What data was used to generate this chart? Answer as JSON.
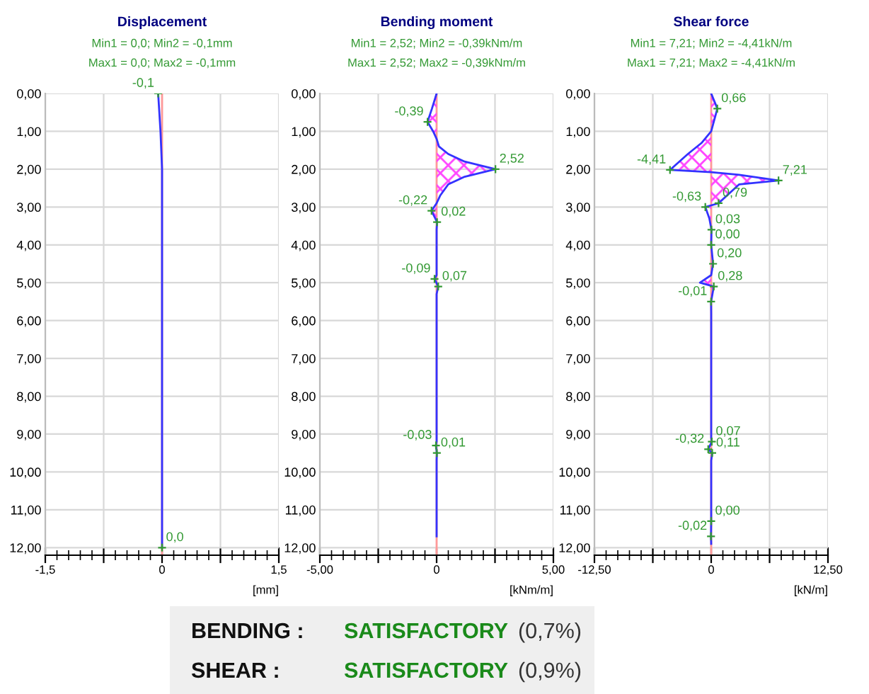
{
  "chart_data": [
    {
      "type": "line",
      "title": "Displacement",
      "subtitle": "Min1 = 0,0; Min2 = -0,1mm\nMax1 = 0,0; Max2 = -0,1mm",
      "xlabel": "[mm]",
      "series": [
        {
          "color": "#3333ff",
          "x": [
            -0.05,
            -0.02,
            0,
            0
          ],
          "values": [
            0,
            1,
            2,
            12
          ]
        }
      ],
      "xlim": [
        -1.5,
        1.5
      ],
      "xticks": [
        {
          "value": -1.5,
          "label": "-1,5"
        },
        {
          "value": -0.75,
          "label": null
        },
        0,
        {
          "value": 0.75,
          "label": null
        },
        {
          "value": 1.5,
          "label": "1,5"
        }
      ],
      "ylim": [
        12.2,
        0
      ],
      "yticks": [
        {
          "value": 0,
          "label": "0,00"
        },
        {
          "value": 1,
          "label": "1,00"
        },
        {
          "value": 2,
          "label": "2,00"
        },
        {
          "value": 3,
          "label": "3,00"
        },
        {
          "value": 4,
          "label": "4,00"
        },
        {
          "value": 5,
          "label": "5,00"
        },
        {
          "value": 6,
          "label": "6,00"
        },
        {
          "value": 7,
          "label": "7,00"
        },
        {
          "value": 8,
          "label": "8,00"
        },
        {
          "value": 9,
          "label": "9,00"
        },
        {
          "value": 10,
          "label": "10,00"
        },
        {
          "value": 11,
          "label": "11,00"
        },
        {
          "value": 12,
          "label": "12,00"
        }
      ],
      "grid": true,
      "ref_lines": [
        {
          "axis": "x",
          "value": 0,
          "color": "#ff9999"
        }
      ],
      "annotations": [
        {
          "text": "-0,1",
          "x": -0.05,
          "y": 0
        },
        {
          "text": "0,0",
          "x": 0,
          "y": 12
        }
      ]
    },
    {
      "type": "area",
      "title": "Bending moment",
      "subtitle": "Min1 = 2,52; Min2 = -0,39kNm/m\nMax1 = 2,52; Max2 = -0,39kNm/m",
      "xlabel": "[kNm/m]",
      "series": [
        {
          "color": "#3333ff",
          "x": [
            0,
            -0.2,
            -0.39,
            -0.15,
            0,
            0.1,
            0.5,
            1.2,
            2.52,
            1.2,
            0.5,
            0.15,
            0,
            -0.22,
            0.02,
            0,
            0,
            -0.09,
            0.07,
            0,
            0,
            -0.03,
            0.01,
            0,
            0
          ],
          "values": [
            0,
            0.4,
            0.75,
            1.0,
            1.2,
            1.4,
            1.6,
            1.8,
            2.0,
            2.2,
            2.4,
            2.7,
            2.9,
            3.1,
            3.4,
            3.6,
            4.8,
            4.9,
            5.1,
            5.3,
            9.2,
            9.3,
            9.5,
            9.7,
            11.7
          ]
        }
      ],
      "xlim": [
        -5,
        5
      ],
      "xticks": [
        {
          "value": -5,
          "label": "-5,00"
        },
        {
          "value": -2.5,
          "label": null
        },
        0,
        {
          "value": 2.5,
          "label": null
        },
        {
          "value": 5,
          "label": "5,00"
        }
      ],
      "ylim": [
        12.2,
        0
      ],
      "yticks": [
        {
          "value": 0,
          "label": "0,00"
        },
        {
          "value": 1,
          "label": "1,00"
        },
        {
          "value": 2,
          "label": "2,00"
        },
        {
          "value": 3,
          "label": "3,00"
        },
        {
          "value": 4,
          "label": "4,00"
        },
        {
          "value": 5,
          "label": "5,00"
        },
        {
          "value": 6,
          "label": "6,00"
        },
        {
          "value": 7,
          "label": "7,00"
        },
        {
          "value": 8,
          "label": "8,00"
        },
        {
          "value": 9,
          "label": "9,00"
        },
        {
          "value": 10,
          "label": "10,00"
        },
        {
          "value": 11,
          "label": "11,00"
        },
        {
          "value": 12,
          "label": "12,00"
        }
      ],
      "grid": true,
      "ref_lines": [
        {
          "axis": "x",
          "value": 0,
          "color": "#ff9999"
        }
      ],
      "annotations": [
        {
          "text": "-0,39",
          "x": -0.39,
          "y": 0.75
        },
        {
          "text": "2,52",
          "x": 2.52,
          "y": 2.0
        },
        {
          "text": "-0,22",
          "x": -0.22,
          "y": 3.1
        },
        {
          "text": "0,02",
          "x": 0.02,
          "y": 3.4
        },
        {
          "text": "-0,09",
          "x": -0.09,
          "y": 4.9
        },
        {
          "text": "0,07",
          "x": 0.07,
          "y": 5.1
        },
        {
          "text": "-0,03",
          "x": -0.03,
          "y": 9.3
        },
        {
          "text": "0,01",
          "x": 0.01,
          "y": 9.5
        }
      ]
    },
    {
      "type": "area",
      "title": "Shear force",
      "subtitle": "Min1 = 7,21; Min2 = -4,41kN/m\nMax1 = 7,21; Max2 = -4,41kN/m",
      "xlabel": "[kN/m]",
      "series": [
        {
          "color": "#3333ff",
          "x": [
            0,
            0.66,
            0,
            -1.0,
            -2.5,
            -4.41,
            0,
            3.0,
            7.21,
            3.0,
            0.79,
            -0.63,
            -0.2,
            0.03,
            0,
            0.2,
            0,
            -1.2,
            0.28,
            -0.01,
            0,
            0,
            0.07,
            -0.32,
            0.11,
            0,
            0,
            -0.02,
            0
          ],
          "values": [
            0,
            0.4,
            1.0,
            1.3,
            1.6,
            2.02,
            2.08,
            2.15,
            2.3,
            2.4,
            2.9,
            3.0,
            3.3,
            3.6,
            4.0,
            4.5,
            4.8,
            5.0,
            5.1,
            5.5,
            5.8,
            9.1,
            9.2,
            9.4,
            9.5,
            9.7,
            11.3,
            11.7,
            11.9
          ]
        }
      ],
      "xlim": [
        -12.5,
        12.5
      ],
      "xticks": [
        {
          "value": -12.5,
          "label": "-12,50"
        },
        {
          "value": -6.25,
          "label": null
        },
        0,
        {
          "value": 6.25,
          "label": null
        },
        {
          "value": 12.5,
          "label": "12,50"
        }
      ],
      "ylim": [
        12.2,
        0
      ],
      "yticks": [
        {
          "value": 0,
          "label": "0,00"
        },
        {
          "value": 1,
          "label": "1,00"
        },
        {
          "value": 2,
          "label": "2,00"
        },
        {
          "value": 3,
          "label": "3,00"
        },
        {
          "value": 4,
          "label": "4,00"
        },
        {
          "value": 5,
          "label": "5,00"
        },
        {
          "value": 6,
          "label": "6,00"
        },
        {
          "value": 7,
          "label": "7,00"
        },
        {
          "value": 8,
          "label": "8,00"
        },
        {
          "value": 9,
          "label": "9,00"
        },
        {
          "value": 10,
          "label": "10,00"
        },
        {
          "value": 11,
          "label": "11,00"
        },
        {
          "value": 12,
          "label": "12,00"
        }
      ],
      "grid": true,
      "ref_lines": [
        {
          "axis": "x",
          "value": 0,
          "color": "#ff9999"
        }
      ],
      "annotations": [
        {
          "text": "0,66",
          "x": 0.66,
          "y": 0.4
        },
        {
          "text": "-4,41",
          "x": -4.41,
          "y": 2.02
        },
        {
          "text": "7,21",
          "x": 7.21,
          "y": 2.3
        },
        {
          "text": "0,79",
          "x": 0.79,
          "y": 2.9
        },
        {
          "text": "-0,63",
          "x": -0.63,
          "y": 3.0
        },
        {
          "text": "0,03",
          "x": 0.03,
          "y": 3.6
        },
        {
          "text": "0,00",
          "x": 0,
          "y": 4.0
        },
        {
          "text": "0,20",
          "x": 0.2,
          "y": 4.5
        },
        {
          "text": "0,28",
          "x": 0.28,
          "y": 5.1
        },
        {
          "text": "-0,01",
          "x": -0.01,
          "y": 5.5
        },
        {
          "text": "0,07",
          "x": 0.07,
          "y": 9.2
        },
        {
          "text": "-0,32",
          "x": -0.32,
          "y": 9.4
        },
        {
          "text": "0,11",
          "x": 0.11,
          "y": 9.5
        },
        {
          "text": "0,00",
          "x": 0,
          "y": 11.3
        },
        {
          "text": "-0,02",
          "x": -0.02,
          "y": 11.7
        }
      ]
    },
    {
      "type": "other",
      "annotations": [
        "BENDING :",
        "SATISFACTORY",
        "(0,7%)",
        "SHEAR :",
        "SATISFACTORY",
        "(0,9%)"
      ]
    }
  ]
}
